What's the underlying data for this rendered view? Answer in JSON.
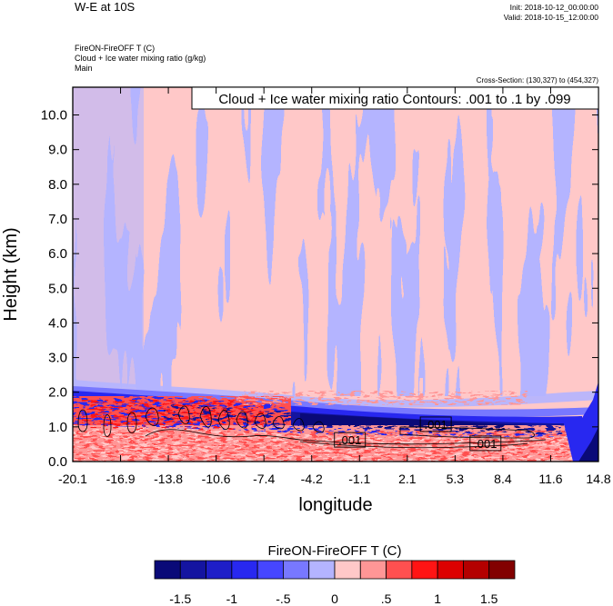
{
  "header": {
    "title": "W-E at 10S",
    "init": "Init: 2018-10-12_00:00:00",
    "valid": "Valid: 2018-10-15_12:00:00",
    "field_lines": [
      "FireON-FireOFF T   (C)",
      "Cloud + Ice water mixing ratio   (g/kg)",
      "Main"
    ],
    "cross_section": "Cross-Section: (130,327) to (454,327)"
  },
  "colors": {
    "palette": [
      "#0a0a78",
      "#1414a0",
      "#1e1ec8",
      "#2828f0",
      "#4646ff",
      "#7878ff",
      "#b4b4ff",
      "#ffc8c8",
      "#ff9696",
      "#ff5050",
      "#ff1414",
      "#dc0000",
      "#b40000",
      "#820000"
    ],
    "contour": "#000000"
  },
  "chart_data": {
    "type": "heatmap",
    "title": "",
    "xlabel": "longitude",
    "ylabel": "Height (km)",
    "xlim": [
      -20.1,
      14.8
    ],
    "ylim": [
      0.0,
      10.8
    ],
    "x_ticks": [
      "-20.1",
      "-16.9",
      "-13.8",
      "-10.6",
      "-7.4",
      "-4.2",
      "-1.1",
      "2.1",
      "5.3",
      "8.4",
      "11.6",
      "14.8"
    ],
    "y_ticks": [
      "0.0",
      "1.0",
      "2.0",
      "3.0",
      "4.0",
      "5.0",
      "6.0",
      "7.0",
      "8.0",
      "9.0",
      "10.0"
    ],
    "contour_info": "Cloud + Ice water mixing ratio Contours: .001 to .1 by .099",
    "contour_labels": [
      {
        "text": ".001",
        "lon": 4.0,
        "height": 1.05
      },
      {
        "text": ".001",
        "lon": -1.7,
        "height": 0.6
      },
      {
        "text": ".001",
        "lon": 7.3,
        "height": 0.5
      }
    ],
    "colorbar": {
      "title": "FireON-FireOFF T  (C)",
      "tick_labels": [
        "-1.5",
        "-1",
        "-.5",
        "0",
        ".5",
        "1",
        "1.5"
      ],
      "tick_values": [
        -1.5,
        -1.0,
        -0.5,
        0.0,
        0.5,
        1.0,
        1.5
      ],
      "range": [
        -1.75,
        1.75
      ],
      "levels": 14
    }
  }
}
